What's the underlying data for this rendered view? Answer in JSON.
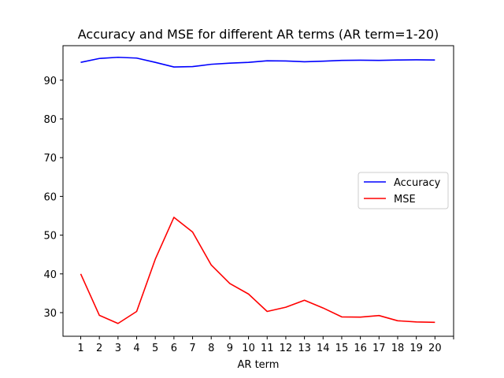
{
  "chart_data": {
    "type": "line",
    "title": "Accuracy and MSE for different AR terms (AR term=1-20)",
    "xlabel": "AR term",
    "ylabel": "",
    "x": [
      1,
      2,
      3,
      4,
      5,
      6,
      7,
      8,
      9,
      10,
      11,
      12,
      13,
      14,
      15,
      16,
      17,
      18,
      19,
      20
    ],
    "x_ticks": [
      "1",
      "2",
      "3",
      "4",
      "5",
      "6",
      "7",
      "8",
      "9",
      "10",
      "11",
      "12",
      "13",
      "14",
      "15",
      "16",
      "17",
      "18",
      "19",
      "20",
      ""
    ],
    "y_ticks": [
      30,
      40,
      50,
      60,
      70,
      80,
      90
    ],
    "xlim": [
      0.05,
      21.0
    ],
    "ylim": [
      23.9,
      98.9
    ],
    "grid": false,
    "legend_position": "center-right",
    "series": [
      {
        "name": "Accuracy",
        "color": "#0000ff",
        "values": [
          94.6,
          95.6,
          95.9,
          95.7,
          94.6,
          93.4,
          93.5,
          94.1,
          94.4,
          94.6,
          95.0,
          94.95,
          94.75,
          94.9,
          95.1,
          95.15,
          95.1,
          95.2,
          95.25,
          95.2
        ]
      },
      {
        "name": "MSE",
        "color": "#ff0000",
        "values": [
          40.0,
          29.3,
          27.2,
          30.3,
          43.8,
          54.6,
          50.8,
          42.3,
          37.5,
          34.8,
          30.3,
          31.4,
          33.2,
          31.2,
          28.9,
          28.85,
          29.25,
          27.9,
          27.6,
          27.5
        ]
      }
    ]
  }
}
